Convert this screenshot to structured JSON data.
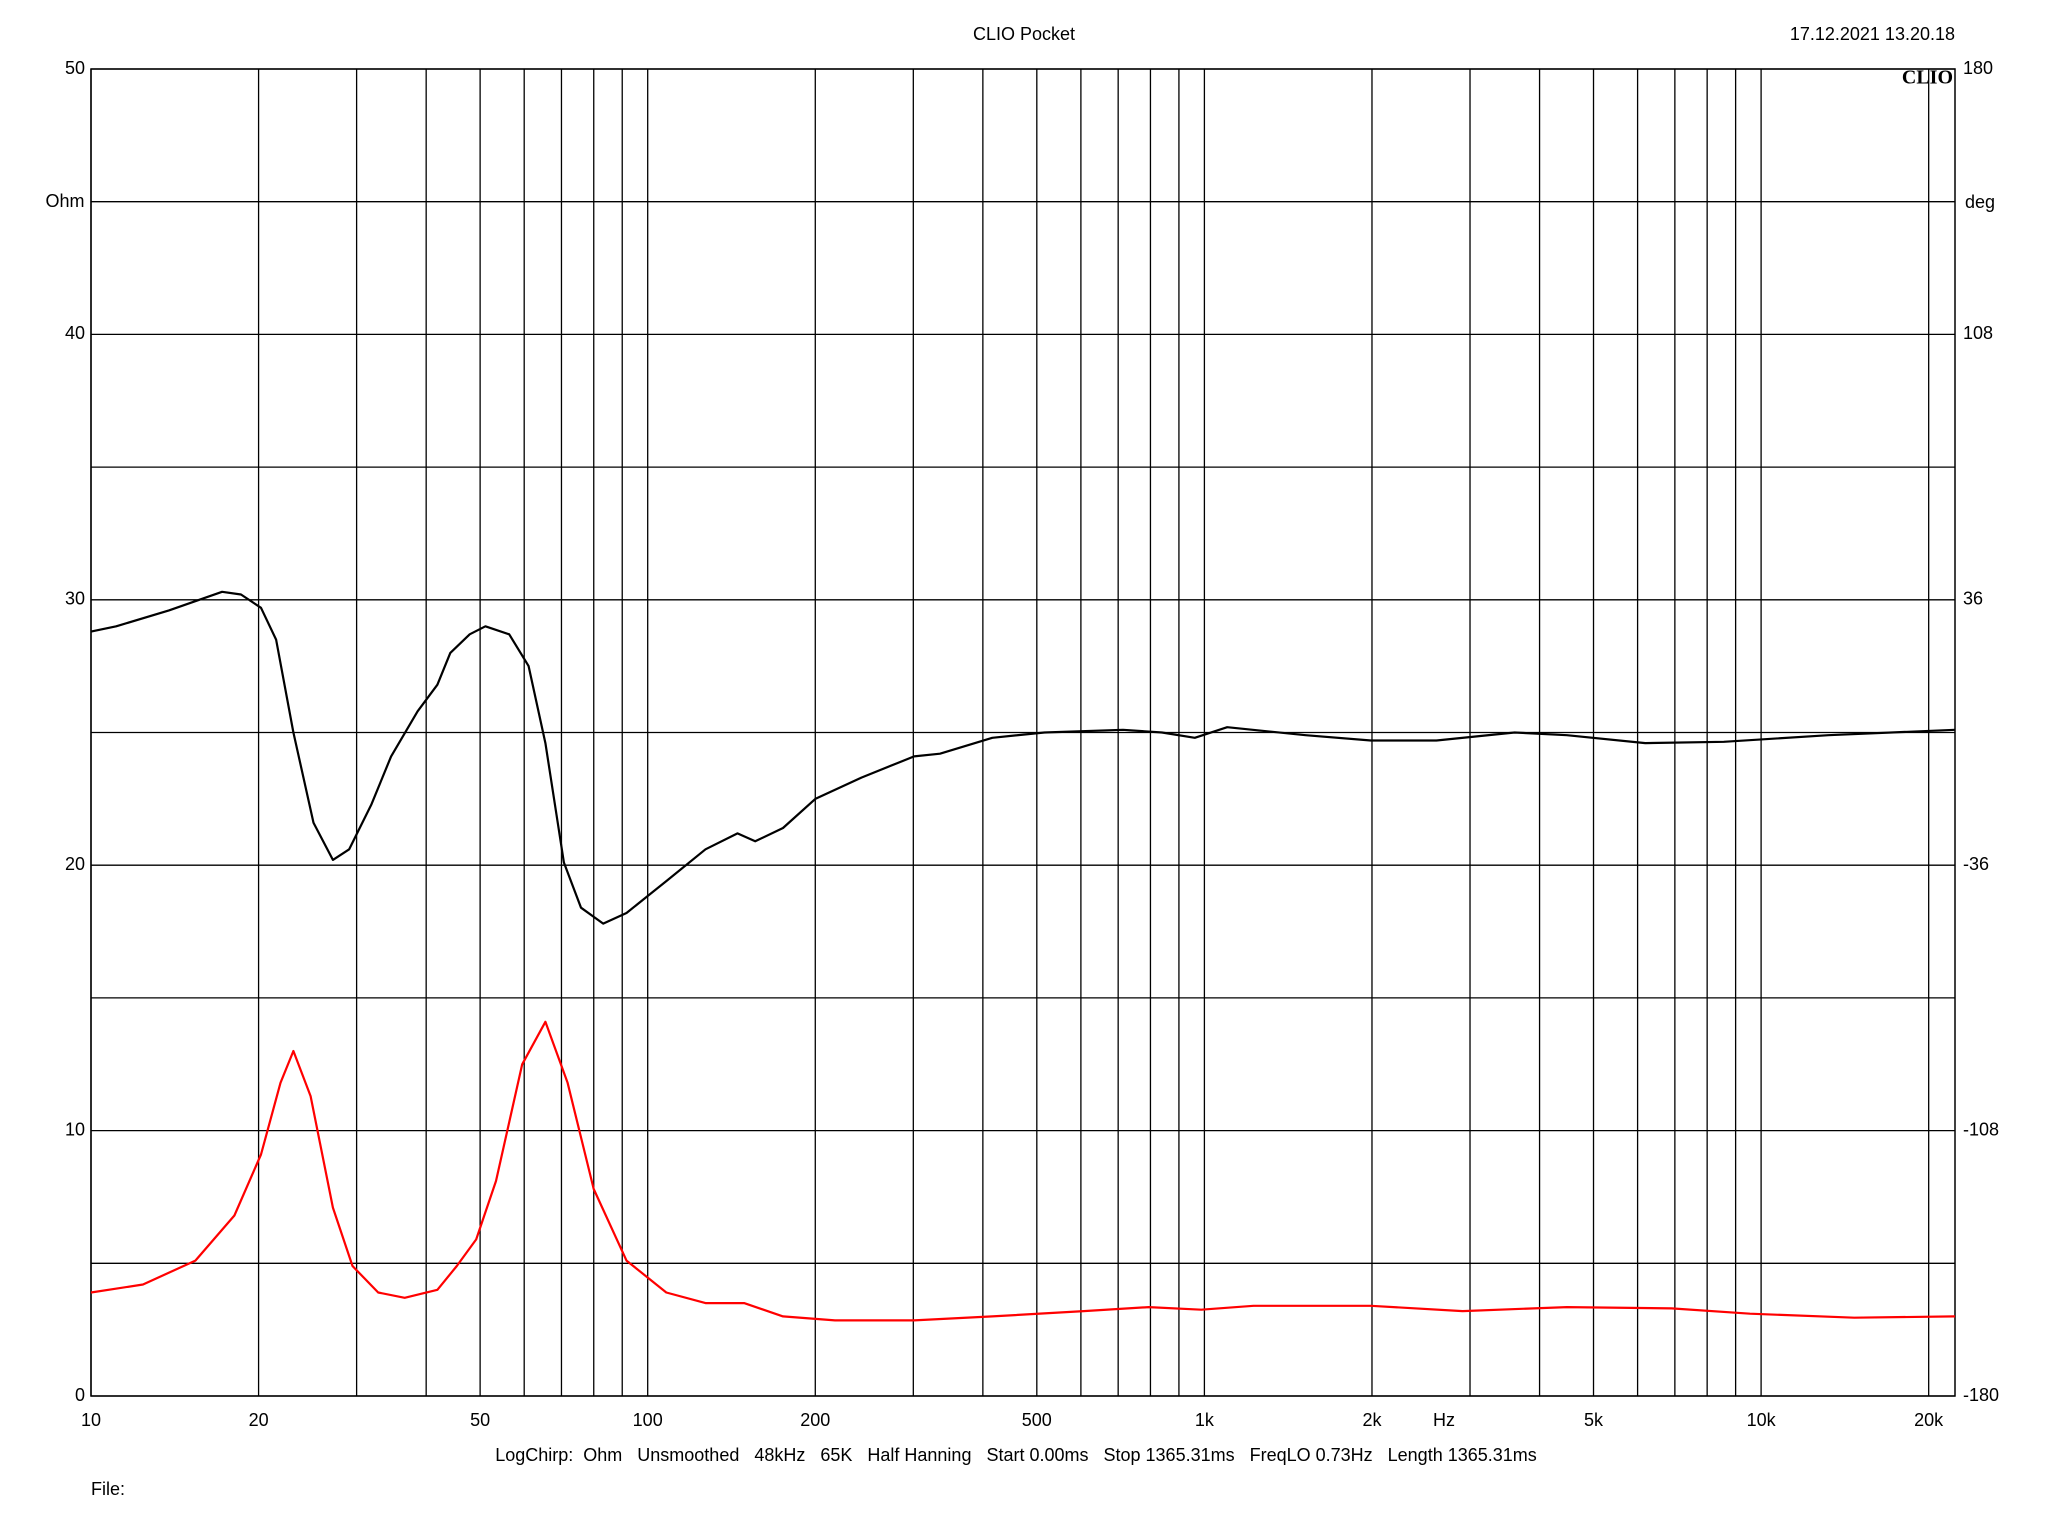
{
  "chart_data": {
    "type": "line",
    "title": "CLIO Pocket",
    "timestamp": "17.12.2021 13.20.18",
    "logo": "CLIO",
    "y_label": "Ohm",
    "y2_label": "deg",
    "x_label": "Hz",
    "footer": "LogChirp:  Ohm   Unsmoothed   48kHz   65K   Half Hanning   Start 0.00ms   Stop 1365.31ms   FreqLO 0.73Hz   Length 1365.31ms",
    "file_label": "File:",
    "x_log": true,
    "grid": true,
    "xlim": [
      10,
      22300
    ],
    "xticks": [
      10,
      20,
      50,
      100,
      200,
      500,
      {
        "value": 1000,
        "label": "1k"
      },
      {
        "value": 2000,
        "label": "2k"
      },
      {
        "value": 5000,
        "label": "5k"
      },
      {
        "value": 10000,
        "label": "10k"
      },
      {
        "value": 20000,
        "label": "20k"
      }
    ],
    "xminor": [
      30,
      40,
      60,
      70,
      80,
      90,
      300,
      400,
      600,
      700,
      800,
      900,
      3000,
      4000,
      6000,
      7000,
      8000,
      9000
    ],
    "ylim": [
      0,
      50
    ],
    "yticks": [
      0,
      10,
      20,
      30,
      40,
      50
    ],
    "yminor": [
      5,
      15,
      25,
      35,
      45
    ],
    "y2lim": [
      -180,
      180
    ],
    "y2ticks": [
      -180,
      -108,
      -36,
      36,
      108,
      180
    ],
    "series": [
      {
        "color": "#000000",
        "x": [
          10,
          11.1,
          13.8,
          17.2,
          18.6,
          20.2,
          21.5,
          23.1,
          25.1,
          27.2,
          29.1,
          31.9,
          34.6,
          38.6,
          41.9,
          44.2,
          47.9,
          51.1,
          56.4,
          61.1,
          65.5,
          70.7,
          75.9,
          83.2,
          91.6,
          108,
          127,
          145,
          156,
          175,
          200,
          242,
          301,
          335,
          416,
          516,
          714,
          839,
          961,
          1099,
          1520,
          1991,
          2612,
          3607,
          4479,
          6194,
          8569,
          13210,
          22300
        ],
        "values": [
          28.8,
          29.0,
          29.6,
          30.3,
          30.2,
          29.7,
          28.5,
          25.0,
          21.6,
          20.2,
          20.6,
          22.3,
          24.1,
          25.8,
          26.8,
          28.0,
          28.7,
          29.0,
          28.7,
          27.5,
          24.6,
          20.1,
          18.4,
          17.8,
          18.2,
          19.4,
          20.6,
          21.2,
          20.9,
          21.4,
          22.5,
          23.3,
          24.1,
          24.2,
          24.8,
          25.0,
          25.1,
          25.0,
          24.8,
          25.2,
          24.9,
          24.7,
          24.7,
          25.0,
          24.9,
          24.6,
          24.65,
          24.9,
          25.1
        ]
      },
      {
        "color": "#ff0000",
        "x": [
          10,
          12.4,
          15.4,
          18.1,
          20.2,
          21.9,
          23.1,
          24.8,
          27.2,
          29.5,
          32.8,
          36.6,
          41.9,
          45.4,
          49.2,
          53.4,
          59.5,
          65.5,
          71.8,
          80.0,
          91.6,
          108,
          127,
          149,
          175,
          217,
          301,
          416,
          607,
          795,
          987,
          1225,
          1991,
          2909,
          4479,
          6906,
          9550,
          14700,
          22300
        ],
        "values": [
          3.9,
          4.2,
          5.1,
          6.8,
          9.1,
          11.8,
          13.0,
          11.3,
          7.1,
          4.9,
          3.9,
          3.7,
          4.0,
          4.9,
          5.9,
          8.1,
          12.5,
          14.1,
          11.8,
          7.8,
          5.1,
          3.9,
          3.5,
          3.5,
          3.0,
          2.85,
          2.85,
          3.0,
          3.2,
          3.35,
          3.25,
          3.4,
          3.4,
          3.2,
          3.35,
          3.3,
          3.1,
          2.95,
          3.0
        ]
      }
    ]
  }
}
